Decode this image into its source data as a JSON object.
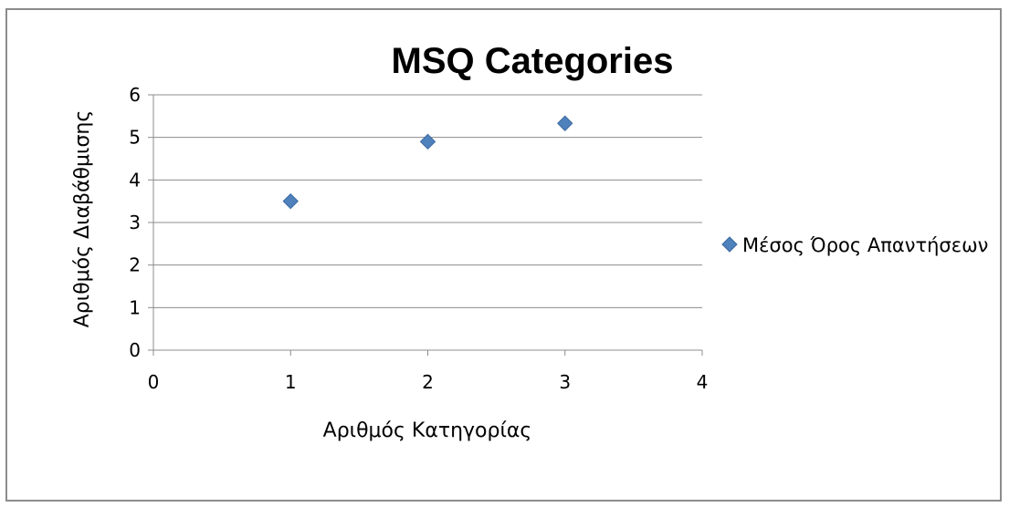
{
  "chart_data": {
    "type": "scatter",
    "title": "MSQ Categories",
    "xlabel": "Αριθμός Κατηγορίας",
    "ylabel": "Αριθμός Διαβάθμισης",
    "xlim": [
      0,
      4
    ],
    "ylim": [
      0,
      6
    ],
    "x_ticks": [
      "0",
      "1",
      "2",
      "3",
      "4"
    ],
    "y_ticks": [
      "0",
      "1",
      "2",
      "3",
      "4",
      "5",
      "6"
    ],
    "grid": "horizontal",
    "legend_position": "right",
    "series": [
      {
        "name": "Μέσος Όρος Απαντήσεων",
        "marker": "diamond",
        "color": "#4f81bd",
        "points": [
          {
            "x": 1,
            "y": 3.5
          },
          {
            "x": 2,
            "y": 4.9
          },
          {
            "x": 3,
            "y": 5.33
          }
        ]
      }
    ]
  }
}
